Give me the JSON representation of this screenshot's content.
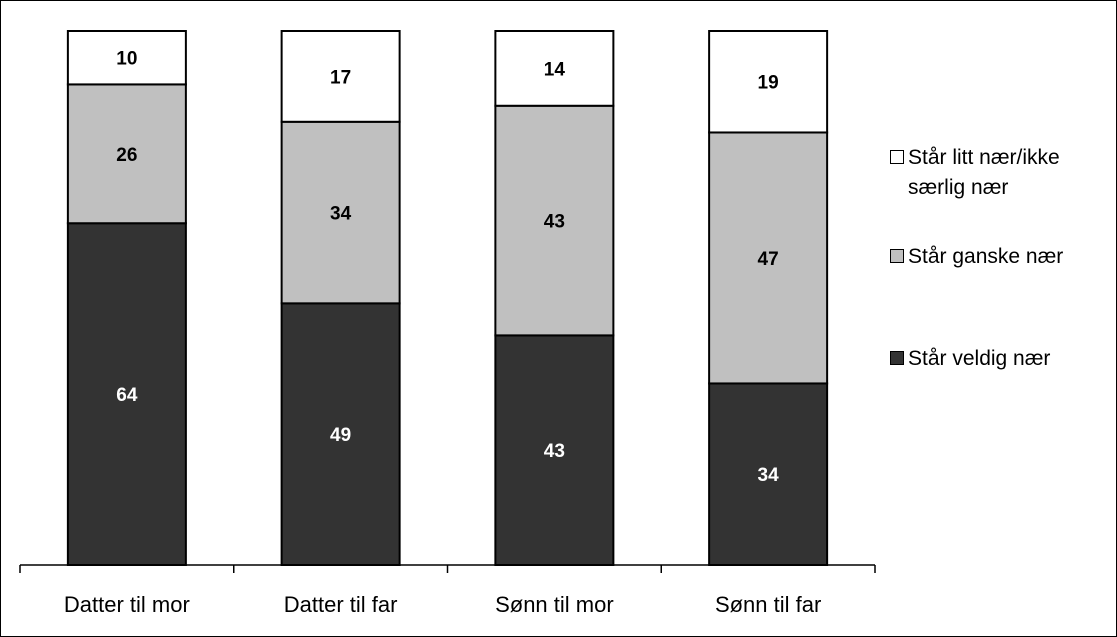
{
  "chart_data": {
    "type": "bar",
    "stacked": true,
    "categories": [
      "Datter til mor",
      "Datter til far",
      "Sønn til mor",
      "Sønn til far"
    ],
    "series": [
      {
        "name": "Står veldig nær",
        "values": [
          64,
          49,
          43,
          34
        ],
        "color": "#333333",
        "label_color": "#ffffff"
      },
      {
        "name": "Står ganske nær",
        "values": [
          26,
          34,
          43,
          47
        ],
        "color": "#c0c0c0",
        "label_color": "#000000"
      },
      {
        "name": "Står litt nær/ikke særlig nær",
        "values": [
          10,
          17,
          14,
          19
        ],
        "color": "#ffffff",
        "label_color": "#000000"
      }
    ],
    "ylim": [
      0,
      100
    ],
    "grid": false,
    "legend_position": "right"
  }
}
